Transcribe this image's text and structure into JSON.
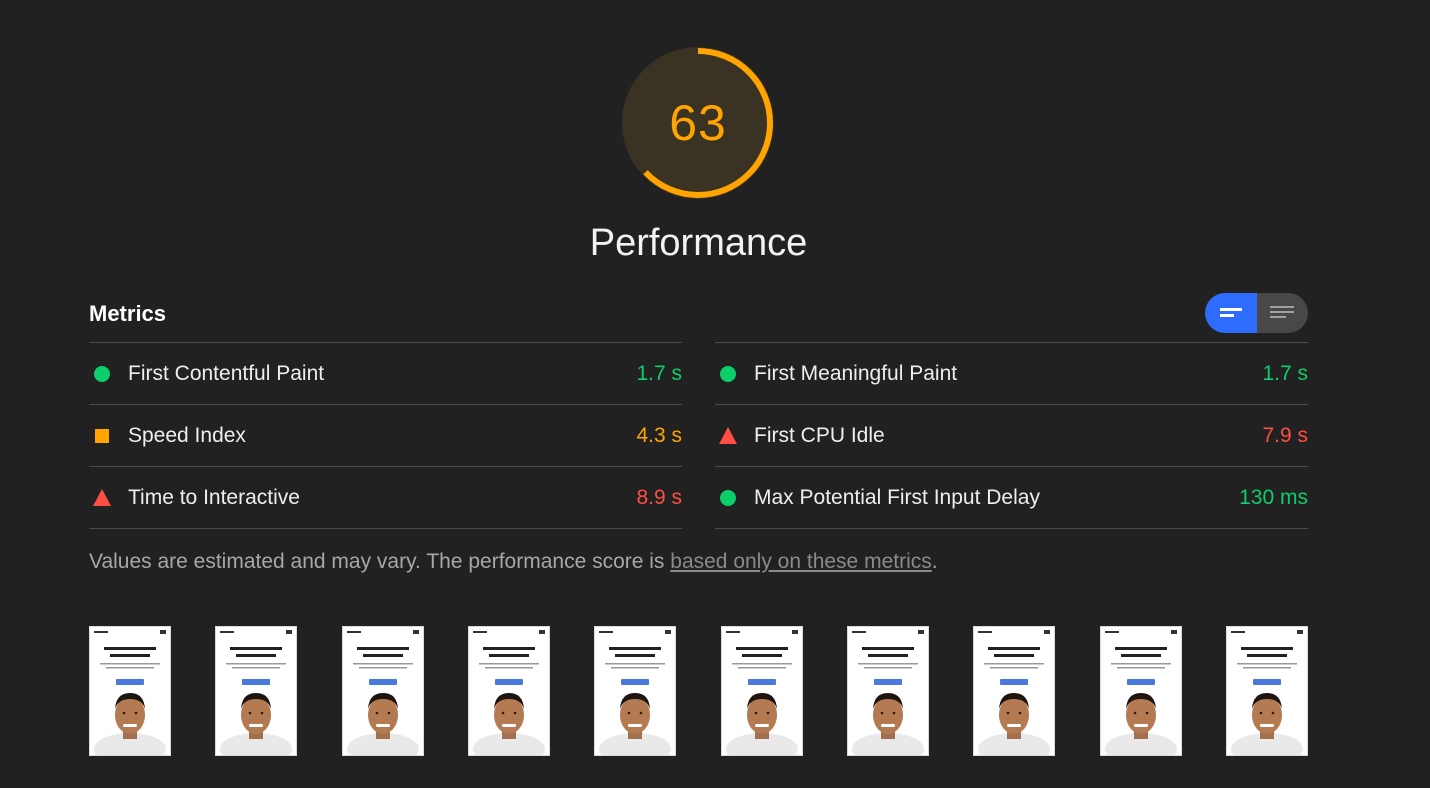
{
  "score": {
    "value": "63",
    "fraction": 0.63,
    "title": "Performance",
    "color": "#ffa400",
    "track_color": "#3a3222"
  },
  "metrics": {
    "header": "Metrics",
    "view_toggle": [
      "compact-view-icon",
      "expanded-view-icon"
    ],
    "items": [
      {
        "name": "First Contentful Paint",
        "value": "1.7 s",
        "status": "pass",
        "icon": "green-circle-icon"
      },
      {
        "name": "First Meaningful Paint",
        "value": "1.7 s",
        "status": "pass",
        "icon": "green-circle-icon"
      },
      {
        "name": "Speed Index",
        "value": "4.3 s",
        "status": "average",
        "icon": "orange-square-icon"
      },
      {
        "name": "First CPU Idle",
        "value": "7.9 s",
        "status": "fail",
        "icon": "red-triangle-icon"
      },
      {
        "name": "Time to Interactive",
        "value": "8.9 s",
        "status": "fail",
        "icon": "red-triangle-icon"
      },
      {
        "name": "Max Potential First Input Delay",
        "value": "130 ms",
        "status": "pass",
        "icon": "green-circle-icon"
      }
    ],
    "colors": {
      "pass": "#0cce6b",
      "average": "#ffa400",
      "fail": "#ff4e42"
    }
  },
  "note": {
    "text": "Values are estimated and may vary. The performance score is ",
    "link": "based only on these metrics",
    "suffix": "."
  },
  "filmstrip": {
    "frame_count": 10
  }
}
